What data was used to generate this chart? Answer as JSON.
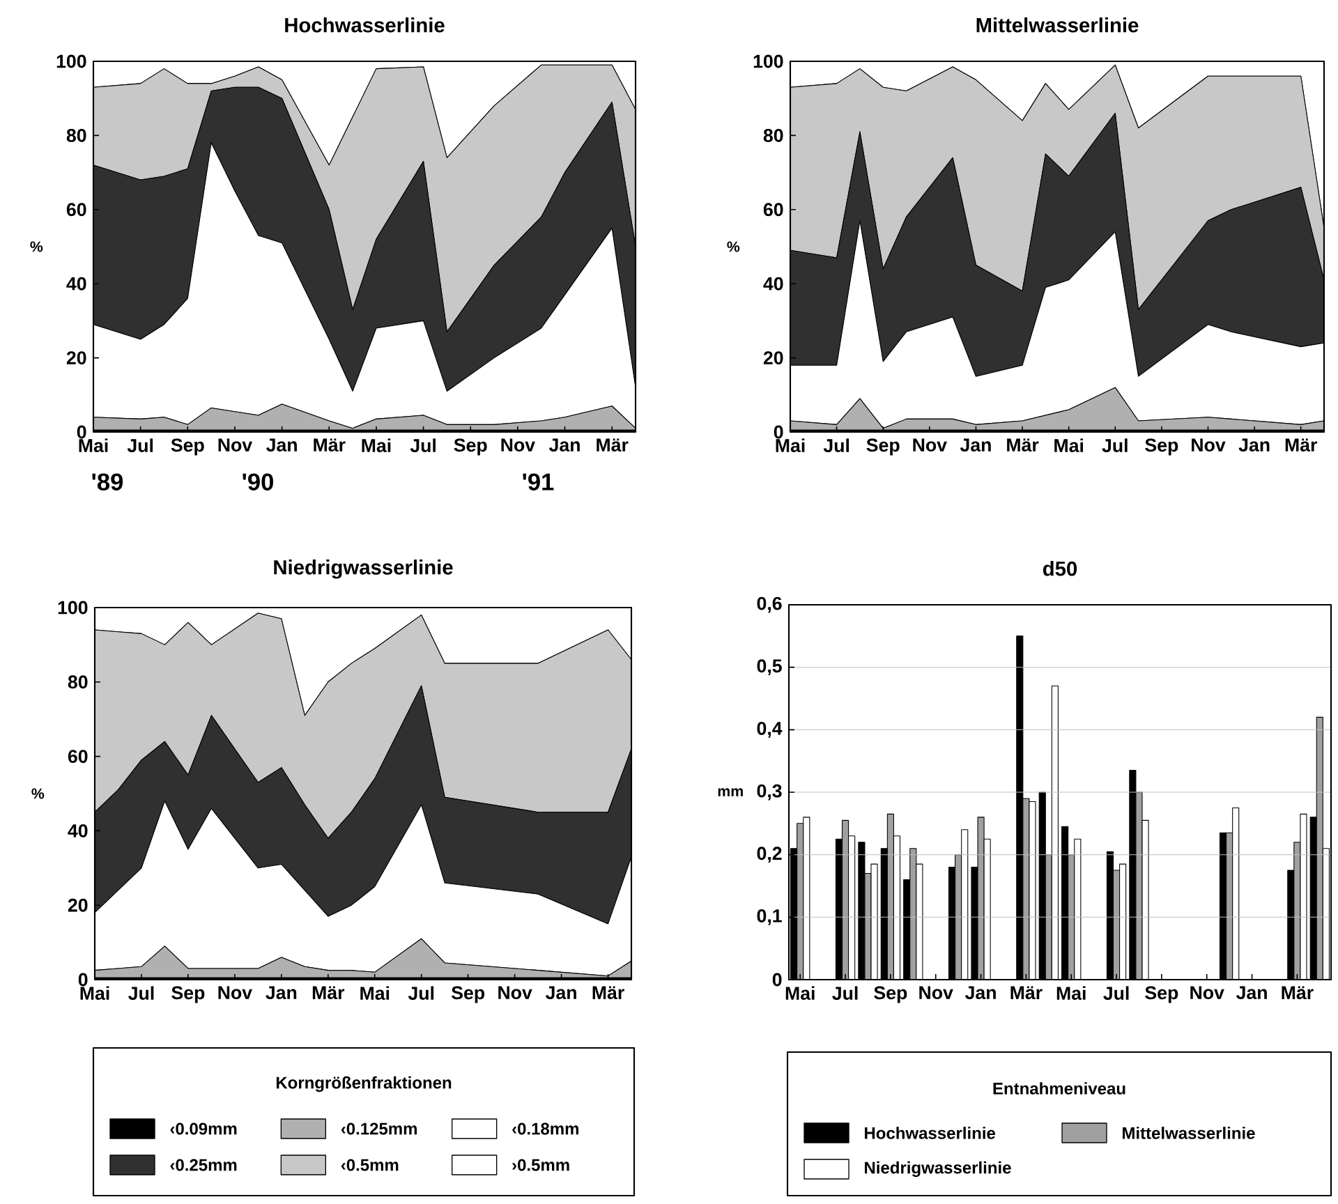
{
  "chart_data": [
    {
      "type": "area",
      "title": "Hochwasserlinie",
      "ylabel": "%",
      "stacked": true,
      "x": [
        "1989-05",
        "1989-07",
        "1989-08",
        "1989-09",
        "1989-10",
        "1989-11",
        "1989-12",
        "1990-01",
        "1990-03",
        "1990-04",
        "1990-05",
        "1990-07",
        "1990-08",
        "1990-10",
        "1990-12",
        "1991-01",
        "1991-03",
        "1991-04"
      ],
      "xlim": [
        "1989-05",
        "1991-04"
      ],
      "ylim": [
        0,
        100
      ],
      "yticks": [
        0,
        20,
        40,
        60,
        80,
        100
      ],
      "xticks": [
        {
          "value": "1989-05",
          "label": "Mai"
        },
        {
          "value": "1989-07",
          "label": "Jul"
        },
        {
          "value": "1989-09",
          "label": "Sep"
        },
        {
          "value": "1989-11",
          "label": "Nov"
        },
        {
          "value": "1990-01",
          "label": "Jan"
        },
        {
          "value": "1990-03",
          "label": "Mär"
        },
        {
          "value": "1990-05",
          "label": "Mai"
        },
        {
          "value": "1990-07",
          "label": "Jul"
        },
        {
          "value": "1990-09",
          "label": "Sep"
        },
        {
          "value": "1990-11",
          "label": "Nov"
        },
        {
          "value": "1991-01",
          "label": "Jan"
        },
        {
          "value": "1991-03",
          "label": "Mär"
        }
      ],
      "annotations": [
        "'89",
        "'90",
        "'91"
      ],
      "series": [
        {
          "color": "#000000",
          "values": [
            0.5,
            0.5,
            0.5,
            0.5,
            0.5,
            0.5,
            0.5,
            0.5,
            0.5,
            0.5,
            0.5,
            0.5,
            0.5,
            0.5,
            0.5,
            0.5,
            0.5,
            0.5
          ]
        },
        {
          "color": "#b0b0b0",
          "values": [
            3.5,
            3,
            3.5,
            1.5,
            6,
            5,
            4,
            7,
            2.5,
            0.5,
            3,
            4,
            1.5,
            1.5,
            2.5,
            3.5,
            6.5,
            0.5
          ]
        },
        {
          "color": "#ffffff",
          "values": [
            25,
            21.5,
            25,
            34,
            71.5,
            59.5,
            48.5,
            43.5,
            22,
            10,
            24.5,
            25.5,
            9,
            18,
            25,
            33,
            48,
            11
          ]
        },
        {
          "color": "#303030",
          "values": [
            43,
            43,
            40,
            35,
            14,
            28,
            40,
            39,
            35,
            22,
            24,
            43,
            16,
            25,
            30,
            33,
            34,
            38
          ]
        },
        {
          "color": "#c8c8c8",
          "values": [
            21,
            26,
            29,
            23,
            2,
            3,
            5.5,
            5,
            12,
            52,
            46,
            25.5,
            47,
            43,
            41,
            29,
            10,
            37
          ]
        },
        {
          "color": "#ffffff",
          "values": [
            7,
            6,
            2,
            6,
            6,
            4,
            1.5,
            5,
            28,
            15,
            2,
            1.5,
            26,
            12,
            1,
            1,
            1,
            13
          ]
        }
      ]
    },
    {
      "type": "area",
      "title": "Mittelwasserlinie",
      "ylabel": "%",
      "stacked": true,
      "x": [
        "1989-05",
        "1989-07",
        "1989-08",
        "1989-09",
        "1989-10",
        "1989-12",
        "1990-01",
        "1990-03",
        "1990-04",
        "1990-05",
        "1990-07",
        "1990-08",
        "1990-11",
        "1990-12",
        "1991-03",
        "1991-04"
      ],
      "xlim": [
        "1989-05",
        "1991-04"
      ],
      "ylim": [
        0,
        100
      ],
      "yticks": [
        0,
        20,
        40,
        60,
        80,
        100
      ],
      "xticks": [
        {
          "value": "1989-05",
          "label": "Mai"
        },
        {
          "value": "1989-07",
          "label": "Jul"
        },
        {
          "value": "1989-09",
          "label": "Sep"
        },
        {
          "value": "1989-11",
          "label": "Nov"
        },
        {
          "value": "1990-01",
          "label": "Jan"
        },
        {
          "value": "1990-03",
          "label": "Mär"
        },
        {
          "value": "1990-05",
          "label": "Mai"
        },
        {
          "value": "1990-07",
          "label": "Jul"
        },
        {
          "value": "1990-09",
          "label": "Sep"
        },
        {
          "value": "1990-11",
          "label": "Nov"
        },
        {
          "value": "1991-01",
          "label": "Jan"
        },
        {
          "value": "1991-03",
          "label": "Mär"
        }
      ],
      "series": [
        {
          "color": "#000000",
          "values": [
            0.5,
            0.5,
            0.5,
            0.5,
            0.5,
            0.5,
            0.5,
            0.5,
            0.5,
            0.5,
            0.5,
            0.5,
            0.5,
            0.5,
            0.5,
            0.5
          ]
        },
        {
          "color": "#b0b0b0",
          "values": [
            2.5,
            1.5,
            8.5,
            0.5,
            3,
            3,
            1.5,
            2.5,
            4,
            5.5,
            11.5,
            2.5,
            3.5,
            3,
            1.5,
            2.5
          ]
        },
        {
          "color": "#ffffff",
          "values": [
            15,
            16,
            48,
            18,
            23.5,
            27.5,
            13,
            15,
            34.5,
            35,
            42,
            12,
            25,
            23.5,
            21,
            21
          ]
        },
        {
          "color": "#303030",
          "values": [
            31,
            29,
            24,
            25,
            31,
            43,
            30,
            20,
            36,
            28,
            32,
            18,
            28,
            33,
            43,
            17
          ]
        },
        {
          "color": "#c8c8c8",
          "values": [
            44,
            47,
            17,
            49,
            34,
            24.5,
            50,
            46,
            19,
            18,
            13,
            49,
            39,
            36,
            30,
            14
          ]
        },
        {
          "color": "#ffffff",
          "values": [
            7,
            6,
            2,
            7,
            8,
            1.5,
            5,
            16,
            6,
            13,
            1,
            18,
            4,
            4,
            4,
            45
          ]
        }
      ]
    },
    {
      "type": "area",
      "title": "Niedrigwasserlinie",
      "ylabel": "%",
      "stacked": true,
      "legend": "bottom",
      "legend_title": "Korngrößenfraktionen",
      "x": [
        "1989-05",
        "1989-06",
        "1989-07",
        "1989-08",
        "1989-09",
        "1989-10",
        "1989-12",
        "1990-01",
        "1990-02",
        "1990-03",
        "1990-04",
        "1990-05",
        "1990-07",
        "1990-08",
        "1990-12",
        "1991-03",
        "1991-04"
      ],
      "xlim": [
        "1989-05",
        "1991-04"
      ],
      "ylim": [
        0,
        100
      ],
      "yticks": [
        0,
        20,
        40,
        60,
        80,
        100
      ],
      "xticks": [
        {
          "value": "1989-05",
          "label": "Mai"
        },
        {
          "value": "1989-07",
          "label": "Jul"
        },
        {
          "value": "1989-09",
          "label": "Sep"
        },
        {
          "value": "1989-11",
          "label": "Nov"
        },
        {
          "value": "1990-01",
          "label": "Jan"
        },
        {
          "value": "1990-03",
          "label": "Mär"
        },
        {
          "value": "1990-05",
          "label": "Mai"
        },
        {
          "value": "1990-07",
          "label": "Jul"
        },
        {
          "value": "1990-09",
          "label": "Sep"
        },
        {
          "value": "1990-11",
          "label": "Nov"
        },
        {
          "value": "1991-01",
          "label": "Jan"
        },
        {
          "value": "1991-03",
          "label": "Mär"
        }
      ],
      "series": [
        {
          "name": "‹0.09mm",
          "color": "#000000",
          "values": [
            0.5,
            0.5,
            0.5,
            0.5,
            0.5,
            0.5,
            0.5,
            0.5,
            0.5,
            0.5,
            0.5,
            0.5,
            0.5,
            0.5,
            0.5,
            0.5,
            0.5
          ]
        },
        {
          "name": "‹0.125mm",
          "color": "#b0b0b0",
          "values": [
            2,
            2.5,
            3,
            8.5,
            2.5,
            2.5,
            2.5,
            5.5,
            3,
            2,
            2,
            1.5,
            10.5,
            4,
            2,
            0.5,
            4.5
          ]
        },
        {
          "name": "‹0.18mm",
          "color": "#ffffff",
          "values": [
            15.5,
            21,
            26.5,
            39,
            32,
            43,
            27,
            25,
            20.5,
            14.5,
            17.5,
            23,
            36,
            21.5,
            20.5,
            14,
            28
          ]
        },
        {
          "name": "‹0.25mm",
          "color": "#303030",
          "values": [
            27,
            27,
            29,
            16,
            20,
            25,
            23,
            26,
            23,
            21,
            25,
            29,
            32,
            23,
            22,
            30,
            29
          ]
        },
        {
          "name": "‹0.5mm",
          "color": "#c8c8c8",
          "values": [
            49,
            42.5,
            34,
            26,
            41,
            19,
            45.5,
            40,
            24,
            42,
            40,
            35,
            19,
            36,
            40,
            49,
            24
          ]
        },
        {
          "name": "›0.5mm",
          "color": "#ffffff",
          "values": [
            6,
            6.5,
            7,
            10,
            4,
            10,
            1.5,
            3,
            29,
            20,
            15,
            11,
            2,
            15,
            15,
            6,
            14
          ]
        }
      ]
    },
    {
      "type": "bar",
      "title": "d50",
      "ylabel": "mm",
      "grid": "y",
      "legend": "bottom",
      "legend_title": "Entnahmeniveau",
      "x": [
        "1989-05",
        "1989-07",
        "1989-08",
        "1989-09",
        "1989-10",
        "1989-12",
        "1990-01",
        "1990-03",
        "1990-04",
        "1990-05",
        "1990-07",
        "1990-08",
        "1990-12",
        "1991-03",
        "1991-04"
      ],
      "xlim": [
        "1989-04-16",
        "1991-04-16"
      ],
      "ylim": [
        0,
        0.6
      ],
      "yticks": [
        0,
        {
          "value": 0.1,
          "label": "0,1"
        },
        {
          "value": 0.2,
          "label": "0,2"
        },
        {
          "value": 0.3,
          "label": "0,3"
        },
        {
          "value": 0.4,
          "label": "0,4"
        },
        {
          "value": 0.5,
          "label": "0,5"
        },
        {
          "value": 0.6,
          "label": "0,6"
        }
      ],
      "xticks": [
        {
          "value": "1989-05",
          "label": "Mai"
        },
        {
          "value": "1989-07",
          "label": "Jul"
        },
        {
          "value": "1989-09",
          "label": "Sep"
        },
        {
          "value": "1989-11",
          "label": "Nov"
        },
        {
          "value": "1990-01",
          "label": "Jan"
        },
        {
          "value": "1990-03",
          "label": "Mär"
        },
        {
          "value": "1990-05",
          "label": "Mai"
        },
        {
          "value": "1990-07",
          "label": "Jul"
        },
        {
          "value": "1990-09",
          "label": "Sep"
        },
        {
          "value": "1990-11",
          "label": "Nov"
        },
        {
          "value": "1991-01",
          "label": "Jan"
        },
        {
          "value": "1991-03",
          "label": "Mär"
        }
      ],
      "series": [
        {
          "name": "Hochwasserlinie",
          "color": "#000000",
          "values": [
            0.21,
            0.225,
            0.22,
            0.21,
            0.16,
            0.18,
            0.18,
            0.55,
            0.3,
            0.245,
            0.205,
            0.335,
            0.235,
            0.175,
            0.26
          ]
        },
        {
          "name": "Mittelwasserlinie",
          "color": "#a0a0a0",
          "values": [
            0.25,
            0.255,
            0.17,
            0.265,
            0.21,
            0.2,
            0.26,
            0.29,
            0.2,
            0.2,
            0.175,
            0.3,
            0.235,
            0.22,
            0.42
          ]
        },
        {
          "name": "Niedrigwasserlinie",
          "color": "#ffffff",
          "values": [
            0.26,
            0.23,
            0.185,
            0.23,
            0.185,
            0.24,
            0.225,
            0.285,
            0.47,
            0.225,
            0.185,
            0.255,
            0.275,
            0.265,
            0.21
          ]
        }
      ]
    }
  ]
}
